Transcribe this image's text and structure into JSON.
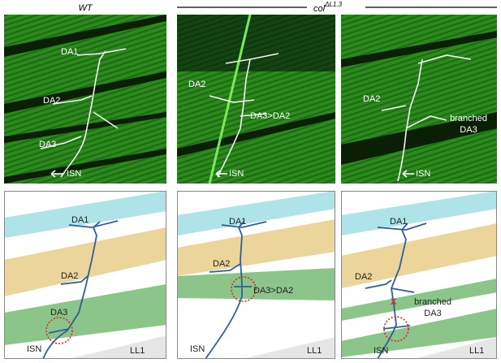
{
  "header": {
    "wt": "WT",
    "mutant": {
      "base": "col",
      "superscript": "ΔL1.3"
    }
  },
  "micrographs": [
    {
      "labels": [
        "DA1",
        "DA2",
        "DA3",
        "ISN"
      ]
    },
    {
      "labels": [
        "DA2",
        "DA3>DA2",
        "ISN"
      ]
    },
    {
      "labels": [
        "DA2",
        [
          "branched",
          "DA3"
        ],
        "ISN"
      ]
    }
  ],
  "diagrams": [
    {
      "labels": [
        "DA1",
        "DA2",
        "DA3",
        "ISN",
        "LL1"
      ]
    },
    {
      "labels": [
        "DA1",
        "DA2",
        "DA3>DA2",
        "ISN",
        "LL1"
      ]
    },
    {
      "labels": [
        "DA1",
        "DA2",
        "X",
        [
          "branched",
          "DA3"
        ],
        "ISN",
        "LL1"
      ]
    }
  ]
}
